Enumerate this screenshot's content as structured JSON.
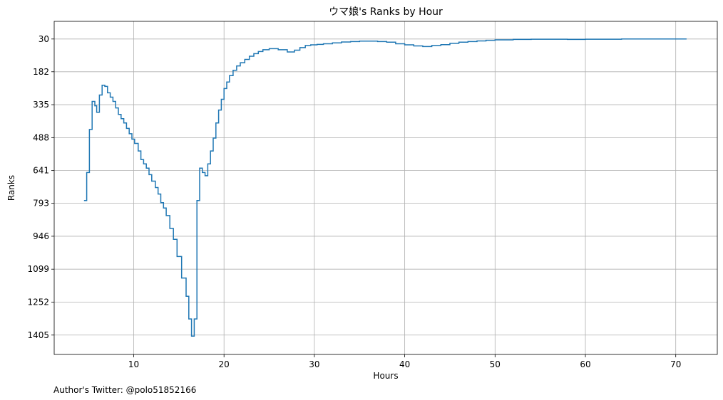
{
  "footer": {
    "author_note": "Author's Twitter: @polo51852166"
  },
  "colors": {
    "series": "#1f77b4",
    "grid": "#b0b0b0"
  },
  "chart_data": {
    "type": "line",
    "step": true,
    "title": "ウマ娘's Ranks by Hour",
    "xlabel": "Hours",
    "ylabel": "Ranks",
    "xlim": [
      1.2,
      74.6
    ],
    "ylim": [
      1495,
      -52
    ],
    "y_inverted": true,
    "grid": true,
    "x_ticks": [
      10,
      20,
      30,
      40,
      50,
      60,
      70
    ],
    "y_ticks": [
      30,
      182,
      335,
      488,
      641,
      793,
      946,
      1099,
      1252,
      1405
    ],
    "series": [
      {
        "x": [
          4.5,
          4.8,
          5.1,
          5.4,
          5.7,
          5.9,
          6.2,
          6.5,
          6.8,
          7.1,
          7.4,
          7.7,
          8.0,
          8.3,
          8.6,
          8.9,
          9.2,
          9.5,
          9.8,
          10.1,
          10.5,
          10.8,
          11.1,
          11.4,
          11.7,
          12.0,
          12.4,
          12.7,
          13.0,
          13.3,
          13.6,
          14.0,
          14.4,
          14.8,
          15.3,
          15.8,
          16.1,
          16.4,
          16.7,
          17.0,
          17.3,
          17.6,
          17.9,
          18.2,
          18.5,
          18.8,
          19.1,
          19.4,
          19.7,
          20.0,
          20.3,
          20.6,
          21.0,
          21.4,
          21.8,
          22.3,
          22.8,
          23.3,
          23.8,
          24.3,
          25.0,
          26.0,
          27.0,
          27.8,
          28.4,
          29.0,
          29.6,
          30.3,
          31.0,
          32.0,
          33.0,
          34.0,
          35.0,
          36.0,
          37.0,
          38.0,
          39.0,
          40.0,
          41.0,
          42.0,
          43.0,
          44.0,
          45.0,
          46.0,
          47.0,
          48.0,
          49.0,
          50.0,
          52.0,
          54.0,
          56.0,
          58.0,
          60.0,
          62.0,
          64.0,
          66.0,
          68.0,
          70.0,
          71.2
        ],
        "y": [
          780,
          650,
          450,
          320,
          340,
          370,
          290,
          245,
          250,
          280,
          300,
          320,
          350,
          380,
          400,
          420,
          445,
          470,
          495,
          515,
          550,
          590,
          610,
          630,
          660,
          690,
          720,
          750,
          790,
          815,
          850,
          910,
          960,
          1040,
          1140,
          1225,
          1330,
          1410,
          1330,
          780,
          630,
          650,
          665,
          610,
          550,
          490,
          420,
          360,
          310,
          260,
          230,
          200,
          175,
          155,
          140,
          125,
          110,
          98,
          88,
          80,
          75,
          80,
          90,
          82,
          70,
          60,
          57,
          55,
          52,
          48,
          44,
          42,
          40,
          40,
          42,
          45,
          52,
          57,
          62,
          65,
          60,
          56,
          50,
          45,
          42,
          39,
          36,
          34,
          32,
          31,
          31,
          32,
          31,
          31,
          30,
          30,
          30,
          30,
          30
        ]
      }
    ]
  }
}
